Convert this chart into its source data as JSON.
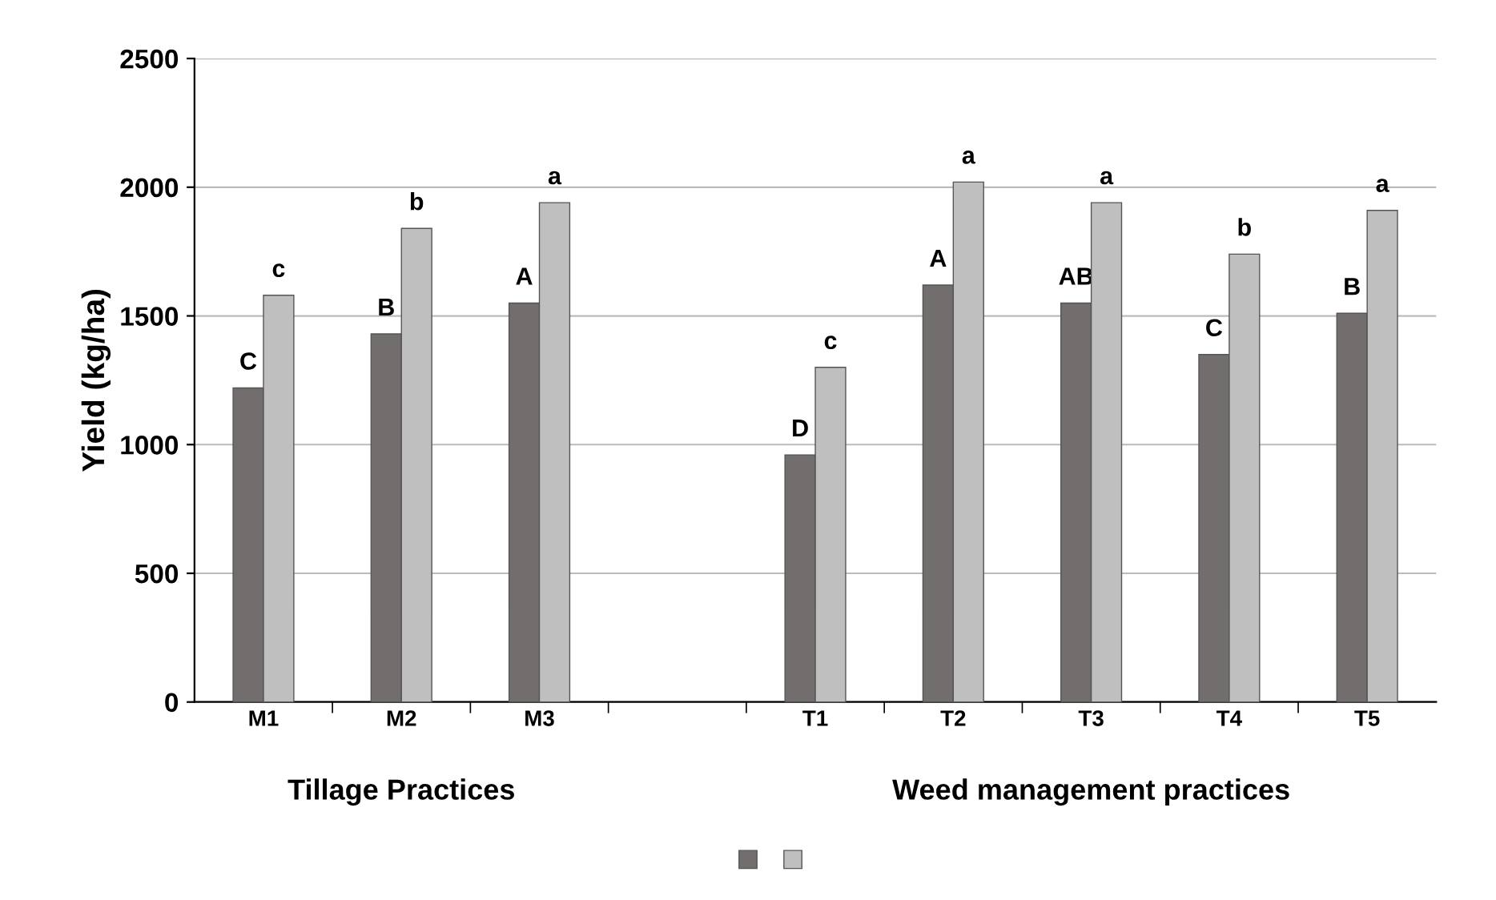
{
  "chart_data": {
    "type": "bar",
    "ylabel": "Yield (kg/ha)",
    "categories": [
      "M1",
      "M2",
      "M3",
      null,
      "T1",
      "T2",
      "T3",
      "T4",
      "T5"
    ],
    "series": [
      {
        "color": "#736e6e",
        "values": [
          1220,
          1430,
          1550,
          null,
          960,
          1620,
          1550,
          1350,
          1510
        ],
        "value_labels": [
          "C",
          "B",
          "A",
          null,
          "D",
          "A",
          "AB",
          "C",
          "B"
        ]
      },
      {
        "color": "#bfbfbf",
        "values": [
          1580,
          1840,
          1940,
          null,
          1300,
          2020,
          1940,
          1740,
          1910
        ],
        "value_labels": [
          "c",
          "b",
          "a",
          null,
          "c",
          "a",
          "a",
          "b",
          "a"
        ]
      }
    ],
    "ylim": [
      0,
      2500
    ],
    "yticks": [
      0,
      500,
      1000,
      1500,
      2000,
      2500
    ],
    "grid": "y",
    "annotations": [
      "Tillage Practices",
      "Weed management practices"
    ]
  }
}
